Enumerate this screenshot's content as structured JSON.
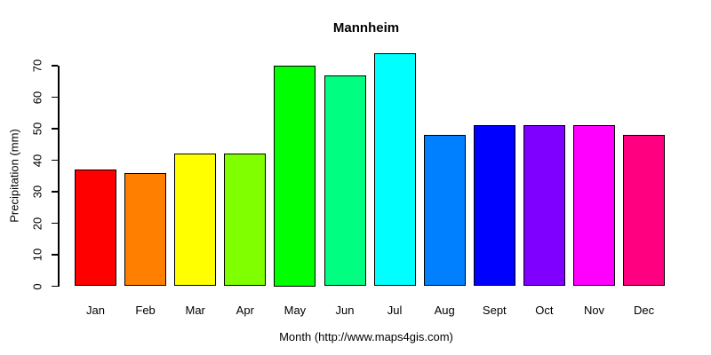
{
  "chart_data": {
    "type": "bar",
    "title": "Mannheim",
    "xlabel": "Month (http://www.maps4gis.com)",
    "ylabel": "Precipitation (mm)",
    "categories": [
      "Jan",
      "Feb",
      "Mar",
      "Apr",
      "May",
      "Jun",
      "Jul",
      "Aug",
      "Sept",
      "Oct",
      "Nov",
      "Dec"
    ],
    "values": [
      37,
      36,
      42,
      42,
      70,
      67,
      74,
      48,
      51,
      51,
      51,
      48
    ],
    "bar_colors": [
      "#FF0000",
      "#FF8000",
      "#FFFF00",
      "#80FF00",
      "#00FF00",
      "#00FF80",
      "#00FFFF",
      "#0080FF",
      "#0000FF",
      "#8000FF",
      "#FF00FF",
      "#FF0080"
    ],
    "yticks": [
      0,
      10,
      20,
      30,
      40,
      50,
      60,
      70
    ],
    "ylim": [
      0,
      74
    ],
    "grid": false,
    "bar_border_color": "#000000",
    "axis_color": "#000000",
    "background_color": "#FFFFFF",
    "legend_position": "none"
  }
}
